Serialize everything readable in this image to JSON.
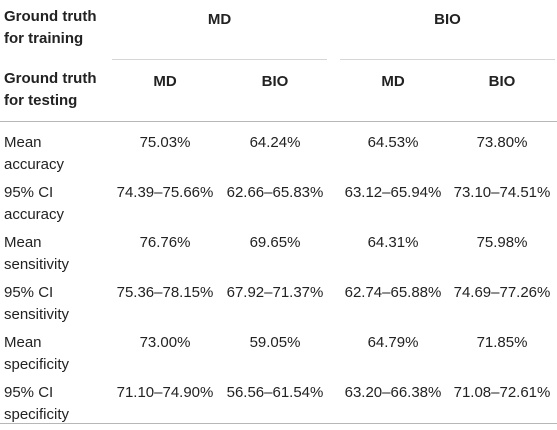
{
  "header": {
    "training_label": "Ground truth\nfor training",
    "testing_label": "Ground truth\nfor testing",
    "training_groups": [
      "MD",
      "BIO"
    ],
    "testing_columns": [
      "MD",
      "BIO",
      "MD",
      "BIO"
    ]
  },
  "rows": [
    {
      "label": "Mean\naccuracy",
      "values": [
        "75.03%",
        "64.24%",
        "64.53%",
        "73.80%"
      ]
    },
    {
      "label": "95% CI\naccuracy",
      "values": [
        "74.39–75.66%",
        "62.66–65.83%",
        "63.12–65.94%",
        "73.10–74.51%"
      ]
    },
    {
      "label": "Mean\nsensitivity",
      "values": [
        "76.76%",
        "69.65%",
        "64.31%",
        "75.98%"
      ]
    },
    {
      "label": "95% CI\nsensitivity",
      "values": [
        "75.36–78.15%",
        "67.92–71.37%",
        "62.74–65.88%",
        "74.69–77.26%"
      ]
    },
    {
      "label": "Mean\nspecificity",
      "values": [
        "73.00%",
        "59.05%",
        "64.79%",
        "71.85%"
      ]
    },
    {
      "label": "95% CI\nspecificity",
      "values": [
        "71.10–74.90%",
        "56.56–61.54%",
        "63.20–66.38%",
        "71.08–72.61%"
      ]
    }
  ]
}
